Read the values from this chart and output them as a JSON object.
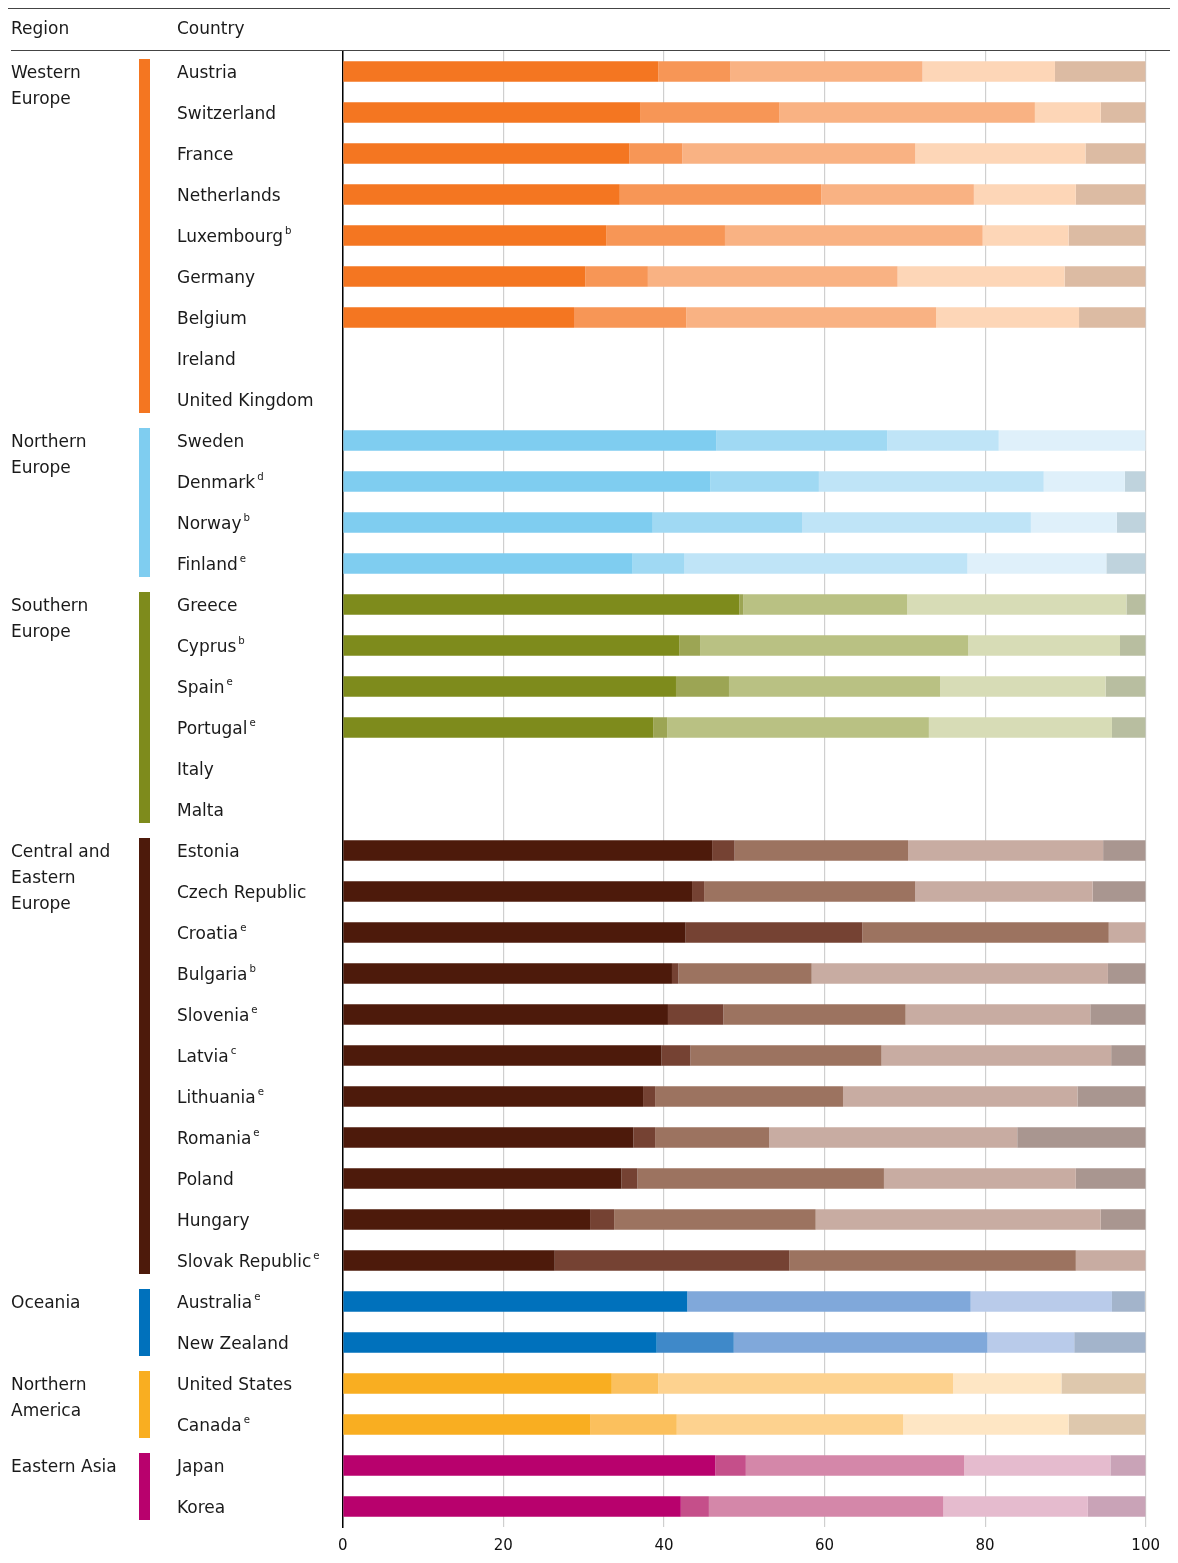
{
  "chart_data": {
    "type": "bar",
    "orientation": "horizontal",
    "stacked": true,
    "grid": "x",
    "legend": false,
    "categories": [
      "Austria",
      "Switzerland",
      "France",
      "Netherlands",
      "Luxembourg$^{b}$",
      "Germany",
      "Belgium",
      "Ireland",
      "United Kingdom",
      "Sweden",
      "Denmark$^{d}$",
      "Norway$^{b}$",
      "Finland$^{e}$",
      "Greece",
      "Cyprus$^{b}$",
      "Spain$^{e}$",
      "Portugal$^{e}$",
      "Italy",
      "Malta",
      "Estonia",
      "Czech Republic",
      "Croatia$^{e}$",
      "Bulgaria$^{b}$",
      "Slovenia$^{e}$",
      "Latvia$^{c}$",
      "Lithuania$^{e}$",
      "Romania$^{e}$",
      "Poland",
      "Hungary",
      "Slovak Republic$^{e}$",
      "Australia$^{e}$",
      "New Zealand",
      "United States",
      "Canada$^{e}$",
      "Japan",
      "Korea"
    ],
    "xlim": [
      0,
      100
    ],
    "xticks": [
      0,
      20,
      40,
      60,
      80,
      100
    ],
    "series": [
      {
        "values": [
          39.3,
          37.1,
          35.7,
          34.5,
          32.8,
          30.2,
          28.8,
          null,
          null,
          46.5,
          45.8,
          38.6,
          36.1,
          49.4,
          41.9,
          41.5,
          38.7,
          null,
          null,
          46.0,
          43.5,
          42.7,
          41.0,
          40.5,
          39.7,
          37.4,
          36.2,
          34.7,
          30.8,
          26.4,
          42.9,
          39.1,
          33.5,
          30.8,
          46.4,
          42.1
        ],
        "colors": [
          "#f47621",
          "#f47621",
          "#f47621",
          "#f47621",
          "#f47621",
          "#f47621",
          "#f47621",
          "#f47621",
          "#f47621",
          "#7fcdf0",
          "#7fcdf0",
          "#7fcdf0",
          "#7fcdf0",
          "#7e8b1c",
          "#7e8b1c",
          "#7e8b1c",
          "#7e8b1c",
          "#7e8b1c",
          "#7e8b1c",
          "#4d1a0b",
          "#4d1a0b",
          "#4d1a0b",
          "#4d1a0b",
          "#4d1a0b",
          "#4d1a0b",
          "#4d1a0b",
          "#4d1a0b",
          "#4d1a0b",
          "#4d1a0b",
          "#4d1a0b",
          "#0071bc",
          "#0071bc",
          "#f9ae21",
          "#f9ae21",
          "#b8016d",
          "#b8016d"
        ]
      },
      {
        "values": [
          9.0,
          17.3,
          6.6,
          25.1,
          14.8,
          7.8,
          14.0,
          null,
          null,
          21.3,
          13.5,
          18.6,
          6.4,
          0.5,
          2.6,
          6.6,
          1.7,
          null,
          null,
          2.8,
          1.5,
          22.0,
          0.8,
          6.9,
          3.6,
          1.5,
          2.7,
          2.0,
          3.0,
          29.2,
          null,
          9.6,
          5.8,
          10.8,
          3.8,
          3.5
        ],
        "colors": [
          "#f79656",
          "#f79656",
          "#f79656",
          "#f79656",
          "#f79656",
          "#f79656",
          "#f79656",
          "#f79656",
          "#f79656",
          "#a0d9f3",
          "#a0d9f3",
          "#a0d9f3",
          "#a0d9f3",
          "#9ca554",
          "#9ca554",
          "#9ca554",
          "#9ca554",
          "#9ca554",
          "#9ca554",
          "#754233",
          "#754233",
          "#754233",
          "#754233",
          "#754233",
          "#754233",
          "#754233",
          "#754233",
          "#754233",
          "#754233",
          "#754233",
          "#3f89c9",
          "#3f89c9",
          "#fbc05d",
          "#fbc05d",
          "#c54f8a",
          "#c54f8a"
        ]
      },
      {
        "values": [
          23.9,
          31.8,
          29.0,
          19.0,
          32.1,
          31.1,
          31.1,
          null,
          null,
          13.9,
          28.0,
          28.5,
          35.3,
          20.4,
          33.4,
          26.3,
          32.6,
          null,
          null,
          21.6,
          26.3,
          30.7,
          16.6,
          22.7,
          23.8,
          23.4,
          14.2,
          30.7,
          25.1,
          35.7,
          35.3,
          31.6,
          36.7,
          28.2,
          27.2,
          29.2
        ],
        "colors": [
          "#f9b283",
          "#f9b283",
          "#f9b283",
          "#f9b283",
          "#f9b283",
          "#f9b283",
          "#f9b283",
          "#f9b283",
          "#f9b283",
          "#bfe4f7",
          "#bfe4f7",
          "#bfe4f7",
          "#bfe4f7",
          "#b9c183",
          "#b9c183",
          "#b9c183",
          "#b9c183",
          "#b9c183",
          "#b9c183",
          "#9c7360",
          "#9c7360",
          "#9c7360",
          "#9c7360",
          "#9c7360",
          "#9c7360",
          "#9c7360",
          "#9c7360",
          "#9c7360",
          "#9c7360",
          "#9c7360",
          "#80a8da",
          "#80a8da",
          "#fdd28f",
          "#fdd28f",
          "#d487a9",
          "#d487a9"
        ]
      },
      {
        "values": [
          16.5,
          8.2,
          21.2,
          12.7,
          10.7,
          20.8,
          17.8,
          null,
          null,
          18.3,
          10.1,
          10.7,
          17.3,
          27.3,
          18.9,
          20.6,
          22.8,
          null,
          null,
          24.3,
          22.1,
          4.6,
          36.9,
          23.0,
          28.6,
          29.2,
          30.9,
          23.9,
          35.5,
          8.7,
          17.6,
          10.8,
          13.5,
          20.6,
          18.2,
          18.0
        ],
        "colors": [
          "#fdd6b7",
          "#fdd6b7",
          "#fdd6b7",
          "#fdd6b7",
          "#fdd6b7",
          "#fdd6b7",
          "#fdd6b7",
          "#fdd6b7",
          "#fdd6b7",
          "#dff0fa",
          "#dff0fa",
          "#dff0fa",
          "#dff0fa",
          "#d7dcb6",
          "#d7dcb6",
          "#d7dcb6",
          "#d7dcb6",
          "#d7dcb6",
          "#d7dcb6",
          "#c8aca2",
          "#c8aca2",
          "#c8aca2",
          "#c8aca2",
          "#c8aca2",
          "#c8aca2",
          "#c8aca2",
          "#c8aca2",
          "#c8aca2",
          "#c8aca2",
          "#c8aca2",
          "#b9cbea",
          "#b9cbea",
          "#fee6c4",
          "#fee6c4",
          "#e5bbce",
          "#e5bbce"
        ]
      },
      {
        "values": [
          11.3,
          5.6,
          7.5,
          8.7,
          9.6,
          10.1,
          8.3,
          null,
          null,
          null,
          2.6,
          3.6,
          4.9,
          2.4,
          3.2,
          5.0,
          4.2,
          null,
          null,
          5.3,
          6.6,
          null,
          4.7,
          6.9,
          4.3,
          8.5,
          16.0,
          8.7,
          5.6,
          null,
          4.1,
          8.9,
          10.5,
          9.6,
          4.4,
          7.2
        ],
        "colors": [
          "#dcbba3",
          "#dcbba3",
          "#dcbba3",
          "#dcbba3",
          "#dcbba3",
          "#dcbba3",
          "#dcbba3",
          "#dcbba3",
          "#dcbba3",
          "#bfd3dd",
          "#bfd3dd",
          "#bfd3dd",
          "#bfd3dd",
          "#b8bea0",
          "#b8bea0",
          "#b8bea0",
          "#b8bea0",
          "#b8bea0",
          "#b8bea0",
          "#a99690",
          "#a99690",
          "#a99690",
          "#a99690",
          "#a99690",
          "#a99690",
          "#a99690",
          "#a99690",
          "#a99690",
          "#a99690",
          "#a99690",
          "#a3b4cb",
          "#a3b4cb",
          "#dec8ad",
          "#dec8ad",
          "#c9a3b7",
          "#c9a3b7"
        ]
      }
    ],
    "annotations": [
      "Region",
      "Country",
      "Western Europe",
      "Northern Europe",
      "Southern Europe",
      "Central and Eastern Europe",
      "Oceania",
      "Northern America",
      "Eastern Asia"
    ]
  }
}
